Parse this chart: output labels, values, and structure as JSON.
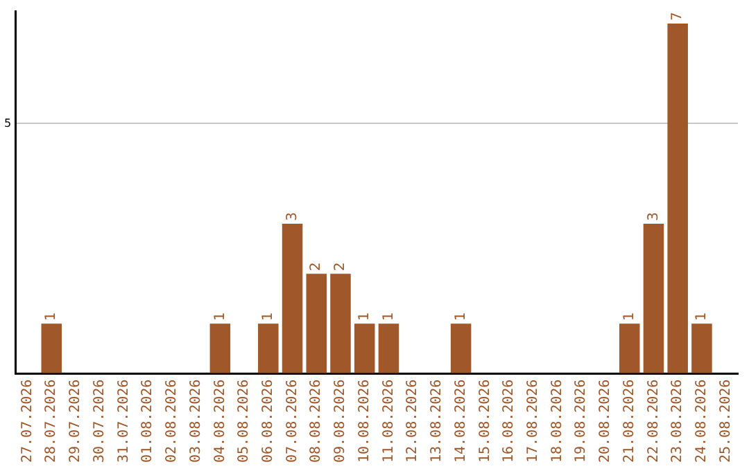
{
  "chart_data": {
    "type": "bar",
    "categories": [
      "27.07.2026",
      "28.07.2026",
      "29.07.2026",
      "30.07.2026",
      "31.07.2026",
      "01.08.2026",
      "02.08.2026",
      "03.08.2026",
      "04.08.2026",
      "05.08.2026",
      "06.08.2026",
      "07.08.2026",
      "08.08.2026",
      "09.08.2026",
      "10.08.2026",
      "11.08.2026",
      "12.08.2026",
      "13.08.2026",
      "14.08.2026",
      "15.08.2026",
      "16.08.2026",
      "17.08.2026",
      "18.08.2026",
      "19.08.2026",
      "20.08.2026",
      "21.08.2026",
      "22.08.2026",
      "23.08.2026",
      "24.08.2026",
      "25.08.2026"
    ],
    "values": [
      0,
      1,
      0,
      0,
      0,
      0,
      0,
      0,
      1,
      0,
      1,
      3,
      2,
      2,
      1,
      1,
      0,
      0,
      1,
      0,
      0,
      0,
      0,
      0,
      0,
      1,
      3,
      7,
      1,
      0
    ],
    "value_labels": [
      null,
      "1",
      null,
      null,
      null,
      null,
      null,
      null,
      "1",
      null,
      "1",
      "3",
      "2",
      "2",
      "1",
      "1",
      null,
      null,
      "1",
      null,
      null,
      null,
      null,
      null,
      null,
      "1",
      "3",
      "7",
      "1",
      null
    ],
    "color": "#a0582a",
    "ylim": [
      0,
      7.25
    ],
    "yticks": [
      {
        "value": 0,
        "label": null
      },
      5
    ],
    "grid": "y",
    "legend": false
  }
}
